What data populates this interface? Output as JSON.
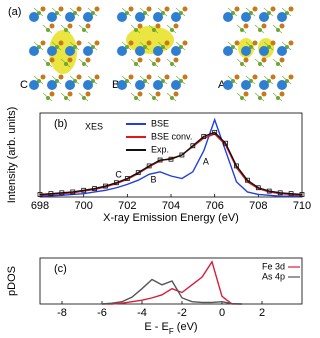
{
  "panel_a": {
    "label": "(a)",
    "sites": [
      "C",
      "B",
      "A"
    ]
  },
  "chart_data": [
    {
      "type": "line",
      "panel": "(b)",
      "annotation": "XES",
      "xlabel": "X-ray Emission Energy (eV)",
      "ylabel": "Intensity (arb. units)",
      "xlim": [
        698,
        710
      ],
      "xticks": [
        698,
        700,
        702,
        704,
        706,
        708,
        710
      ],
      "ylim": [
        0,
        1
      ],
      "peaks": [
        {
          "label": "C",
          "x": 701.6
        },
        {
          "label": "B",
          "x": 703.2
        },
        {
          "label": "A",
          "x": 705.6
        }
      ],
      "legend": "top-right",
      "x": [
        698,
        698.5,
        699,
        699.5,
        700,
        700.5,
        701,
        701.5,
        702,
        702.5,
        703,
        703.5,
        704,
        704.5,
        705,
        705.5,
        706,
        706.5,
        707,
        707.5,
        708,
        708.5,
        709,
        709.5,
        710
      ],
      "series": [
        {
          "name": "BSE",
          "color": "#1f3fe0",
          "markers": false,
          "values": [
            0.01,
            0.015,
            0.02,
            0.03,
            0.04,
            0.06,
            0.08,
            0.11,
            0.15,
            0.2,
            0.27,
            0.3,
            0.25,
            0.22,
            0.3,
            0.55,
            0.92,
            0.55,
            0.18,
            0.06,
            0.03,
            0.02,
            0.01,
            0.01,
            0.01
          ]
        },
        {
          "name": "BSE conv.",
          "color": "#e01818",
          "markers": false,
          "values": [
            0.02,
            0.03,
            0.04,
            0.05,
            0.07,
            0.09,
            0.12,
            0.16,
            0.21,
            0.28,
            0.36,
            0.43,
            0.46,
            0.5,
            0.6,
            0.7,
            0.75,
            0.62,
            0.35,
            0.18,
            0.1,
            0.06,
            0.04,
            0.03,
            0.02
          ]
        },
        {
          "name": "Exp.",
          "color": "#111111",
          "markers": true,
          "values": [
            0.03,
            0.04,
            0.05,
            0.06,
            0.08,
            0.1,
            0.13,
            0.17,
            0.22,
            0.29,
            0.37,
            0.44,
            0.45,
            0.5,
            0.61,
            0.72,
            0.77,
            0.64,
            0.37,
            0.2,
            0.11,
            0.07,
            0.05,
            0.04,
            0.03
          ]
        }
      ]
    },
    {
      "type": "line",
      "panel": "(c)",
      "xlabel_parts": [
        "E - E",
        "F",
        " (eV)"
      ],
      "ylabel": "pDOS",
      "xlim": [
        -9.1,
        4
      ],
      "xticks": [
        -8,
        -6,
        -4,
        -2,
        0,
        2
      ],
      "ylim": [
        0,
        6
      ],
      "legend": "top-right",
      "x": [
        -6,
        -5.5,
        -5,
        -4.5,
        -4,
        -3.5,
        -3,
        -2.5,
        -2,
        -1.5,
        -1,
        -0.5,
        0,
        0.5,
        1
      ],
      "series": [
        {
          "name": "Fe 3d",
          "color": "#d81e3a",
          "markers": false,
          "values": [
            0,
            0,
            0.1,
            0.3,
            0.5,
            0.8,
            1.2,
            2.0,
            1.5,
            2.5,
            3.5,
            5.5,
            1.0,
            0,
            0
          ]
        },
        {
          "name": "As 4p",
          "color": "#555555",
          "markers": false,
          "values": [
            0,
            0.1,
            0.3,
            0.9,
            2.0,
            3.2,
            2.5,
            3.0,
            0.8,
            0.3,
            0.2,
            0.2,
            0.3,
            0.05,
            0
          ]
        }
      ]
    }
  ]
}
